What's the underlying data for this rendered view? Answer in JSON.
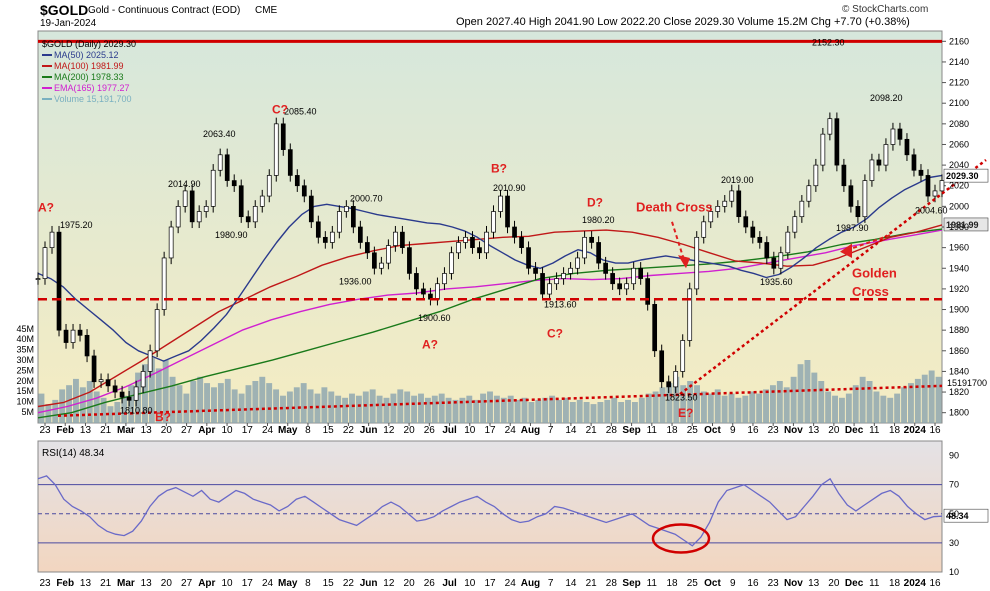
{
  "header": {
    "symbol": "$GOLD",
    "name": "Gold - Continuous Contract (EOD)",
    "exchange": "CME",
    "date": "19-Jan-2024",
    "ohlc": "Open 2027.40  High 2041.90  Low 2022.20  Close 2029.30  Volume 15.2M  Chg +7.70 (+0.38%)",
    "chg_arrow": "▲",
    "watermark": "© StockCharts.com"
  },
  "legend": [
    {
      "label": "$GOLD (Daily) 2029.30",
      "color": "#000000"
    },
    {
      "label": "MA(50) 2025.12",
      "color": "#2a3a8c"
    },
    {
      "label": "MA(100) 1981.99",
      "color": "#c01818"
    },
    {
      "label": "MA(200) 1978.33",
      "color": "#1a7a1a"
    },
    {
      "label": "EMA(165) 1977.27",
      "color": "#d020d0"
    },
    {
      "label": "Volume 15,191,700",
      "color": "#7ab0c0"
    }
  ],
  "colors": {
    "upper_bg_top": "#d6e7dc",
    "upper_bg_bottom": "#f5ecc2",
    "lower_bg_top": "#e4e2e6",
    "lower_bg_bottom": "#f2d6c0",
    "price": "#000000",
    "volume": "#8fa8b0",
    "annot": "#e02020",
    "rsi": "#6a6ac8"
  },
  "chart_data": [
    {
      "type": "line",
      "title": "$GOLD (Daily) 2029.30",
      "ylim": [
        1790,
        2170
      ],
      "price_ticks": [
        2160,
        2140,
        2120,
        2100,
        2080,
        2060,
        2040,
        2020,
        2000,
        1980,
        1960,
        1940,
        1920,
        1900,
        1880,
        1860,
        1840,
        1820,
        1800
      ],
      "volume_ticks": [
        "45M",
        "40M",
        "35M",
        "30M",
        "25M",
        "20M",
        "15M",
        "10M",
        "5M"
      ],
      "x_labels": [
        "23",
        "Feb",
        "13",
        "21",
        "Mar",
        "13",
        "20",
        "27",
        "Apr",
        "10",
        "17",
        "24",
        "May",
        "8",
        "15",
        "22",
        "Jun",
        "12",
        "20",
        "26",
        "Jul",
        "10",
        "17",
        "24",
        "Aug",
        "7",
        "14",
        "21",
        "28",
        "Sep",
        "11",
        "18",
        "25",
        "Oct",
        "9",
        "16",
        "23",
        "Nov",
        "13",
        "20",
        "Dec",
        "11",
        "18",
        "2024",
        "16"
      ],
      "last_price_label": "2029.30",
      "ma100_label": "1981.99",
      "volume_label": "15191700",
      "price_labels": [
        {
          "text": "1975.20",
          "value": 1975.2
        },
        {
          "text": "1810.80",
          "value": 1810.8
        },
        {
          "text": "2014.90",
          "value": 2014.9
        },
        {
          "text": "2063.40",
          "value": 2063.4
        },
        {
          "text": "1980.90",
          "value": 1980.9
        },
        {
          "text": "2085.40",
          "value": 2085.4
        },
        {
          "text": "2000.70",
          "value": 2000.7
        },
        {
          "text": "1936.00",
          "value": 1936.0
        },
        {
          "text": "1900.60",
          "value": 1900.6
        },
        {
          "text": "2010.90",
          "value": 2010.9
        },
        {
          "text": "1913.60",
          "value": 1913.6
        },
        {
          "text": "1980.20",
          "value": 1980.2
        },
        {
          "text": "1823.50",
          "value": 1823.5
        },
        {
          "text": "2019.00",
          "value": 2019.0
        },
        {
          "text": "1935.60",
          "value": 1935.6
        },
        {
          "text": "2152.30",
          "value": 2152.3
        },
        {
          "text": "1987.90",
          "value": 1987.9
        },
        {
          "text": "2098.20",
          "value": 2098.2
        },
        {
          "text": "2004.60",
          "value": 2004.6
        }
      ],
      "wave_labels": [
        "A?",
        "B?",
        "C?",
        "A?",
        "B?",
        "C?",
        "D?",
        "E?"
      ],
      "annotations": [
        "Death Cross",
        "Golden Cross"
      ],
      "price_series": [
        1930,
        1960,
        1975,
        1880,
        1868,
        1880,
        1875,
        1855,
        1830,
        1832,
        1826,
        1820,
        1815,
        1812,
        1825,
        1840,
        1860,
        1900,
        1950,
        1980,
        2000,
        2015,
        1985,
        1995,
        2000,
        2035,
        2050,
        2025,
        2020,
        1990,
        1985,
        2000,
        2010,
        2030,
        2080,
        2055,
        2030,
        2020,
        2010,
        1985,
        1970,
        1965,
        1975,
        1995,
        2000,
        1980,
        1965,
        1955,
        1940,
        1945,
        1962,
        1975,
        1960,
        1935,
        1920,
        1915,
        1910,
        1925,
        1935,
        1955,
        1965,
        1970,
        1960,
        1955,
        1975,
        1995,
        2010,
        1980,
        1970,
        1960,
        1940,
        1935,
        1915,
        1925,
        1930,
        1935,
        1940,
        1950,
        1970,
        1965,
        1945,
        1935,
        1925,
        1920,
        1925,
        1940,
        1930,
        1905,
        1860,
        1830,
        1825,
        1840,
        1870,
        1920,
        1970,
        1985,
        1995,
        2000,
        2005,
        2015,
        1990,
        1980,
        1970,
        1965,
        1950,
        1940,
        1955,
        1975,
        1990,
        2005,
        2020,
        2040,
        2070,
        2085,
        2040,
        2020,
        2000,
        1990,
        2025,
        2045,
        2040,
        2060,
        2075,
        2065,
        2050,
        2035,
        2030,
        2010,
        2015,
        2025
      ],
      "ma50_series": [
        1935,
        1930,
        1922,
        1910,
        1900,
        1890,
        1880,
        1868,
        1860,
        1855,
        1850,
        1855,
        1860,
        1870,
        1882,
        1895,
        1912,
        1930,
        1948,
        1965,
        1980,
        1992,
        2000,
        2002,
        2000,
        1998,
        1995,
        1992,
        1990,
        1988,
        1986,
        1984,
        1983,
        1980,
        1976,
        1970,
        1962,
        1955,
        1948,
        1943,
        1940,
        1945,
        1952,
        1958,
        1955,
        1948,
        1945,
        1945,
        1948,
        1950,
        1952,
        1950,
        1948,
        1946,
        1944,
        1942,
        1938,
        1935,
        1931,
        1934,
        1941,
        1950,
        1960,
        1968,
        1975,
        1980,
        1988,
        1999,
        2008,
        2016,
        2022,
        2028,
        2030
      ],
      "ma100_series": [
        1806,
        1810,
        1820,
        1835,
        1850,
        1866,
        1882,
        1898,
        1910,
        1922,
        1932,
        1943,
        1951,
        1957,
        1962,
        1964,
        1966,
        1968,
        1970,
        1971,
        1975,
        1976,
        1977,
        1975,
        1970,
        1963,
        1955,
        1947,
        1945,
        1942,
        1943,
        1950,
        1960,
        1970,
        1975,
        1982
      ],
      "ma200_series": [
        1795,
        1800,
        1810,
        1818,
        1826,
        1835,
        1843,
        1851,
        1860,
        1869,
        1878,
        1888,
        1898,
        1910,
        1920,
        1930,
        1935,
        1938,
        1940,
        1942,
        1944,
        1947,
        1951,
        1956,
        1963,
        1968,
        1974,
        1978
      ],
      "ema165_series": [
        1800,
        1806,
        1814,
        1825,
        1838,
        1852,
        1866,
        1880,
        1890,
        1898,
        1905,
        1910,
        1914,
        1916,
        1920,
        1922,
        1925,
        1928,
        1930,
        1929,
        1930,
        1933,
        1935,
        1937,
        1940,
        1945,
        1950,
        1955,
        1962,
        1967,
        1972,
        1977
      ],
      "volume_series": [
        14,
        9,
        11,
        16,
        18,
        21,
        17,
        20,
        15,
        12,
        8,
        10,
        13,
        18,
        24,
        28,
        31,
        26,
        30,
        22,
        18,
        14,
        20,
        22,
        19,
        17,
        19,
        21,
        16,
        14,
        18,
        20,
        22,
        19,
        16,
        13,
        15,
        17,
        19,
        16,
        14,
        17,
        15,
        13,
        12,
        14,
        13,
        15,
        16,
        13,
        12,
        14,
        16,
        15,
        13,
        14,
        12,
        13,
        14,
        12,
        11,
        12,
        13,
        11,
        14,
        15,
        13,
        12,
        13,
        11,
        12,
        10,
        11,
        12,
        13,
        11,
        12,
        10,
        11,
        10,
        9,
        10,
        11,
        12,
        10,
        11,
        10,
        12,
        14,
        15,
        17,
        19,
        22,
        18,
        20,
        18,
        15,
        14,
        16,
        13,
        14,
        12,
        13,
        15,
        14,
        16,
        18,
        20,
        17,
        22,
        28,
        30,
        24,
        20,
        15,
        13,
        12,
        14,
        18,
        22,
        20,
        15,
        13,
        12,
        14,
        17,
        19,
        21,
        23,
        25,
        22
      ],
      "trendlines": [
        "upper horizontal resistance",
        "horizontal support",
        "lower rising support",
        "rising golden-cross support"
      ]
    },
    {
      "type": "line",
      "title": "RSI(14) 48.34",
      "ylim": [
        10,
        100
      ],
      "y_ticks": [
        90,
        70,
        50,
        30,
        10
      ],
      "reference_lines": [
        70,
        50,
        30
      ],
      "last_value_label": "48.34",
      "x_labels": [
        "23",
        "Feb",
        "13",
        "21",
        "Mar",
        "13",
        "20",
        "27",
        "Apr",
        "10",
        "17",
        "24",
        "May",
        "8",
        "15",
        "22",
        "Jun",
        "12",
        "20",
        "26",
        "Jul",
        "10",
        "17",
        "24",
        "Aug",
        "7",
        "14",
        "21",
        "28",
        "Sep",
        "11",
        "18",
        "25",
        "Oct",
        "9",
        "16",
        "23",
        "Nov",
        "13",
        "20",
        "Dec",
        "11",
        "18",
        "2024",
        "16"
      ],
      "series": [
        {
          "name": "RSI(14) 48.34",
          "values": [
            74,
            76,
            70,
            60,
            55,
            52,
            48,
            42,
            38,
            36,
            35,
            38,
            45,
            55,
            62,
            66,
            68,
            65,
            62,
            66,
            60,
            58,
            62,
            66,
            64,
            60,
            58,
            56,
            52,
            55,
            60,
            62,
            58,
            54,
            50,
            46,
            44,
            42,
            46,
            50,
            55,
            58,
            55,
            50,
            45,
            46,
            48,
            52,
            55,
            58,
            60,
            62,
            58,
            55,
            50,
            46,
            44,
            45,
            48,
            50,
            55,
            54,
            52,
            50,
            48,
            46,
            44,
            46,
            48,
            50,
            46,
            42,
            40,
            38,
            36,
            32,
            28,
            34,
            44,
            58,
            66,
            68,
            70,
            66,
            62,
            58,
            52,
            46,
            48,
            55,
            62,
            70,
            74,
            64,
            56,
            52,
            56,
            60,
            64,
            66,
            62,
            55,
            50,
            46,
            48,
            48.34
          ]
        }
      ]
    }
  ]
}
